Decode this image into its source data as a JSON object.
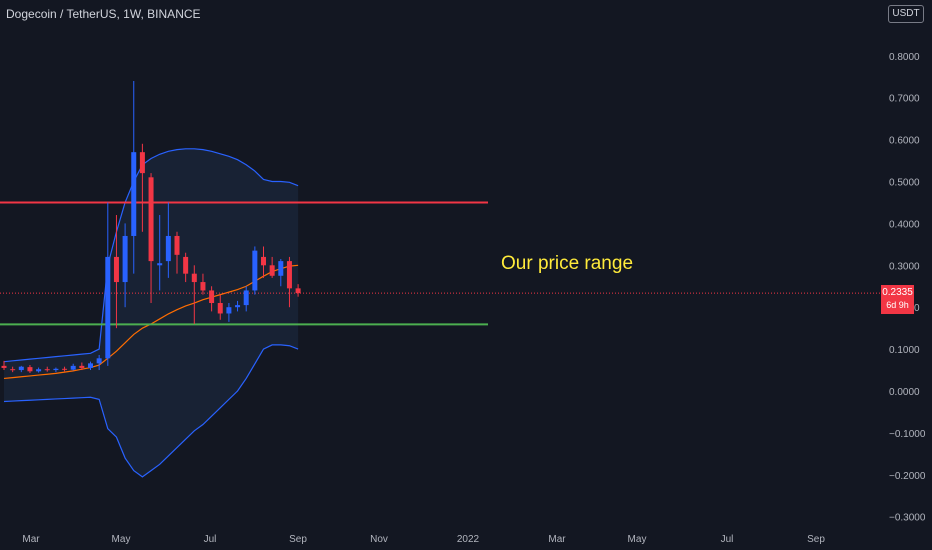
{
  "header": {
    "symbol_title": "Dogecoin / TetherUS, 1W, BINANCE",
    "currency_label": "USDT"
  },
  "annotation": {
    "text": "Our price range"
  },
  "last_price": {
    "label": "0.2335",
    "countdown": "6d 9h"
  },
  "colors": {
    "background": "#131722",
    "up_candle": "#2962ff",
    "down_candle": "#f23645",
    "band_line": "#2962ff",
    "band_fill": "#1a2437",
    "basis_line": "#ff6d00",
    "resistance_line": "#f23645",
    "support_line": "#4caf50",
    "annotation_text": "#ffeb3b",
    "axis_text": "#b2b5be"
  },
  "chart_data": {
    "type": "candlestick",
    "title": "Dogecoin / TetherUS, 1W, BINANCE",
    "interval": "1W",
    "y_axis_side": "right",
    "ylim": [
      -0.31,
      0.9
    ],
    "x_tick_labels": [
      "Mar",
      "May",
      "Jul",
      "Sep",
      "Nov",
      "2022",
      "Mar",
      "May",
      "Jul",
      "Sep"
    ],
    "y_tick_values": [
      0.8,
      0.7,
      0.6,
      0.5,
      0.4,
      0.3,
      0.2,
      0.1,
      0.0,
      -0.1,
      -0.2,
      -0.3
    ],
    "y_tick_labels": [
      "0.8000",
      "0.7000",
      "0.6000",
      "0.5000",
      "0.4000",
      "0.3000",
      "0.2000",
      "0.1000",
      "0.0000",
      "−0.1000",
      "−0.2000",
      "−0.3000"
    ],
    "candles": [
      {
        "o": 0.06,
        "h": 0.072,
        "l": 0.05,
        "c": 0.055
      },
      {
        "o": 0.052,
        "h": 0.058,
        "l": 0.045,
        "c": 0.05
      },
      {
        "o": 0.05,
        "h": 0.06,
        "l": 0.045,
        "c": 0.058
      },
      {
        "o": 0.057,
        "h": 0.062,
        "l": 0.043,
        "c": 0.047
      },
      {
        "o": 0.047,
        "h": 0.056,
        "l": 0.044,
        "c": 0.052
      },
      {
        "o": 0.052,
        "h": 0.058,
        "l": 0.046,
        "c": 0.05
      },
      {
        "o": 0.05,
        "h": 0.056,
        "l": 0.045,
        "c": 0.053
      },
      {
        "o": 0.053,
        "h": 0.058,
        "l": 0.047,
        "c": 0.051
      },
      {
        "o": 0.051,
        "h": 0.065,
        "l": 0.049,
        "c": 0.06
      },
      {
        "o": 0.06,
        "h": 0.068,
        "l": 0.05,
        "c": 0.055
      },
      {
        "o": 0.055,
        "h": 0.07,
        "l": 0.05,
        "c": 0.066
      },
      {
        "o": 0.066,
        "h": 0.086,
        "l": 0.05,
        "c": 0.078
      },
      {
        "o": 0.078,
        "h": 0.45,
        "l": 0.06,
        "c": 0.32
      },
      {
        "o": 0.32,
        "h": 0.42,
        "l": 0.15,
        "c": 0.26
      },
      {
        "o": 0.26,
        "h": 0.4,
        "l": 0.2,
        "c": 0.37
      },
      {
        "o": 0.37,
        "h": 0.74,
        "l": 0.28,
        "c": 0.57
      },
      {
        "o": 0.57,
        "h": 0.59,
        "l": 0.38,
        "c": 0.52
      },
      {
        "o": 0.51,
        "h": 0.52,
        "l": 0.21,
        "c": 0.31
      },
      {
        "o": 0.3,
        "h": 0.42,
        "l": 0.24,
        "c": 0.305
      },
      {
        "o": 0.31,
        "h": 0.45,
        "l": 0.27,
        "c": 0.37
      },
      {
        "o": 0.37,
        "h": 0.38,
        "l": 0.28,
        "c": 0.325
      },
      {
        "o": 0.32,
        "h": 0.33,
        "l": 0.26,
        "c": 0.28
      },
      {
        "o": 0.28,
        "h": 0.3,
        "l": 0.16,
        "c": 0.26
      },
      {
        "o": 0.26,
        "h": 0.28,
        "l": 0.23,
        "c": 0.24
      },
      {
        "o": 0.24,
        "h": 0.25,
        "l": 0.19,
        "c": 0.21
      },
      {
        "o": 0.21,
        "h": 0.23,
        "l": 0.17,
        "c": 0.185
      },
      {
        "o": 0.185,
        "h": 0.21,
        "l": 0.165,
        "c": 0.2
      },
      {
        "o": 0.2,
        "h": 0.215,
        "l": 0.19,
        "c": 0.205
      },
      {
        "o": 0.205,
        "h": 0.25,
        "l": 0.19,
        "c": 0.24
      },
      {
        "o": 0.24,
        "h": 0.345,
        "l": 0.23,
        "c": 0.335
      },
      {
        "o": 0.32,
        "h": 0.345,
        "l": 0.27,
        "c": 0.3
      },
      {
        "o": 0.3,
        "h": 0.32,
        "l": 0.27,
        "c": 0.275
      },
      {
        "o": 0.275,
        "h": 0.315,
        "l": 0.25,
        "c": 0.31
      },
      {
        "o": 0.31,
        "h": 0.32,
        "l": 0.2,
        "c": 0.245
      },
      {
        "o": 0.245,
        "h": 0.255,
        "l": 0.225,
        "c": 0.2335
      }
    ],
    "bands": {
      "upper": [
        0.07,
        0.072,
        0.074,
        0.076,
        0.078,
        0.08,
        0.082,
        0.084,
        0.086,
        0.088,
        0.09,
        0.1,
        0.3,
        0.38,
        0.45,
        0.5,
        0.54,
        0.555,
        0.565,
        0.572,
        0.576,
        0.578,
        0.578,
        0.576,
        0.572,
        0.566,
        0.56,
        0.552,
        0.54,
        0.525,
        0.505,
        0.5,
        0.5,
        0.498,
        0.49
      ],
      "basis": [
        0.03,
        0.032,
        0.034,
        0.036,
        0.038,
        0.04,
        0.042,
        0.045,
        0.048,
        0.052,
        0.056,
        0.062,
        0.078,
        0.095,
        0.115,
        0.135,
        0.15,
        0.16,
        0.172,
        0.184,
        0.194,
        0.203,
        0.21,
        0.218,
        0.224,
        0.23,
        0.236,
        0.242,
        0.25,
        0.262,
        0.274,
        0.285,
        0.292,
        0.298,
        0.3
      ],
      "lower": [
        -0.025,
        -0.024,
        -0.023,
        -0.022,
        -0.021,
        -0.02,
        -0.019,
        -0.018,
        -0.017,
        -0.016,
        -0.015,
        -0.02,
        -0.09,
        -0.11,
        -0.16,
        -0.19,
        -0.205,
        -0.19,
        -0.175,
        -0.155,
        -0.135,
        -0.115,
        -0.095,
        -0.08,
        -0.06,
        -0.04,
        -0.02,
        0.0,
        0.03,
        0.065,
        0.1,
        0.11,
        0.11,
        0.108,
        0.1
      ]
    },
    "horizontal_lines": [
      {
        "name": "resistance",
        "value": 0.45
      },
      {
        "name": "support",
        "value": 0.159
      }
    ]
  }
}
